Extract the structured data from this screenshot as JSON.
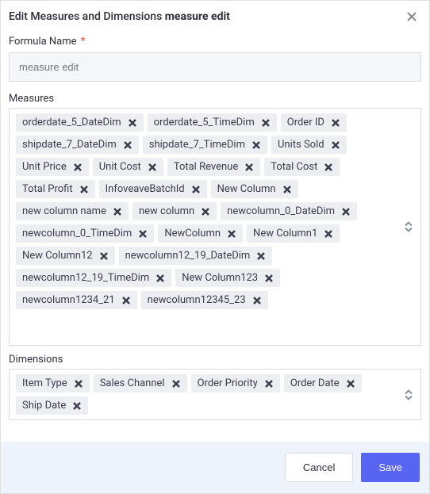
{
  "dialog": {
    "title_prefix": "Edit Measures and Dimensions ",
    "title_bold": "measure edit"
  },
  "formula_name": {
    "label": "Formula Name",
    "placeholder": "measure edit"
  },
  "measures": {
    "label": "Measures",
    "items": [
      "orderdate_5_DateDim",
      "orderdate_5_TimeDim",
      "Order ID",
      "shipdate_7_DateDim",
      "shipdate_7_TimeDim",
      "Units Sold",
      "Unit Price",
      "Unit Cost",
      "Total Revenue",
      "Total Cost",
      "Total Profit",
      "InfoveaveBatchId",
      "New Column",
      "new column name",
      "new column",
      "newcolumn_0_DateDim",
      "newcolumn_0_TimeDim",
      "NewColumn",
      "New Column1",
      "New Column12",
      "newcolumn12_19_DateDim",
      "newcolumn12_19_TimeDim",
      "New Column123",
      "newcolumn1234_21",
      "newcolumn12345_23"
    ]
  },
  "dimensions": {
    "label": "Dimensions",
    "items": [
      "Item Type",
      "Sales Channel",
      "Order Priority",
      "Order Date",
      "Ship Date"
    ]
  },
  "buttons": {
    "cancel": "Cancel",
    "save": "Save"
  }
}
